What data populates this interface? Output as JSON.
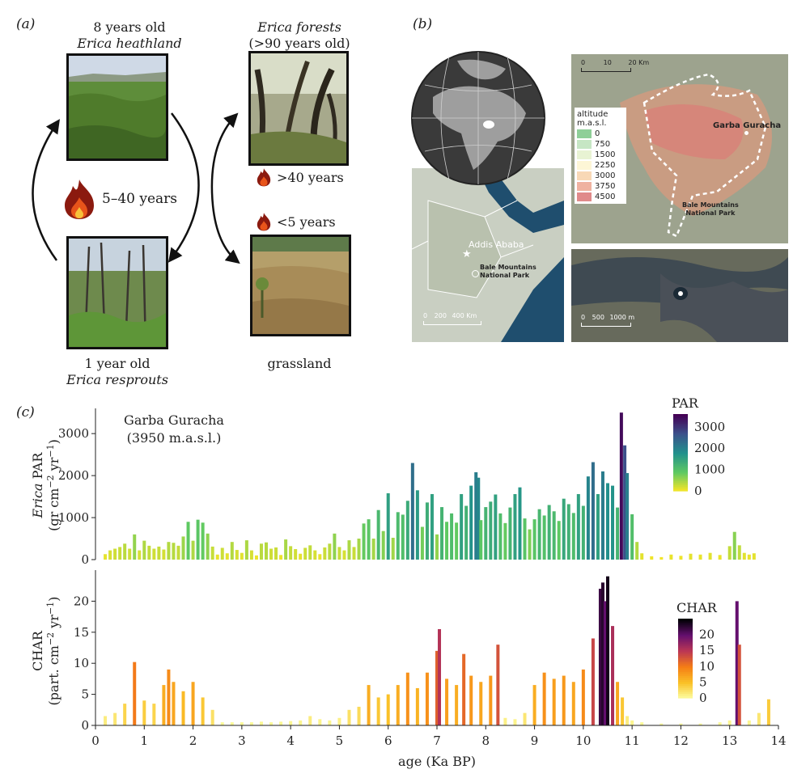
{
  "panel_a": {
    "label": "(a)",
    "top_left_caption": [
      "8 years old",
      "Erica heathland"
    ],
    "top_right_caption": [
      "Erica forests",
      "(>90 years old)"
    ],
    "bottom_left_caption": [
      "1 year old",
      "Erica resprouts"
    ],
    "bottom_right_caption": "grassland",
    "fire_center_label": "5–40 years",
    "fire_upper_label": ">40 years",
    "fire_lower_label": "<5 years"
  },
  "panel_b": {
    "label": "(b)",
    "legend_title": "altitude",
    "legend_unit": "m.a.s.l.",
    "legend_entries": [
      {
        "label": "0",
        "color": "#8fcf98"
      },
      {
        "label": "750",
        "color": "#c6e6c4"
      },
      {
        "label": "1500",
        "color": "#e8f3d3"
      },
      {
        "label": "2250",
        "color": "#fdf6d6"
      },
      {
        "label": "3000",
        "color": "#f8d8b6"
      },
      {
        "label": "3750",
        "color": "#efb2a0"
      },
      {
        "label": "4500",
        "color": "#e08a8a"
      }
    ],
    "scale_region": [
      "0",
      "200",
      "400 Km"
    ],
    "scale_park": [
      "0",
      "10",
      "20 Km"
    ],
    "scale_lake": [
      "0",
      "500",
      "1000 m"
    ],
    "city_label": "Addis Ababa",
    "park_label_small": [
      "Bale Mountains",
      "National Park"
    ],
    "park_label_large": [
      "Bale Mountains",
      "National Park"
    ],
    "site_label": "Garba Guracha"
  },
  "panel_c": {
    "label": "(c)",
    "site_title": [
      "Garba Guracha",
      "(3950 m.a.s.l.)"
    ],
    "xlabel": "age (Ka BP)"
  },
  "chart_data": [
    {
      "type": "bar",
      "title": "Garba Guracha (3950 m.a.s.l.)",
      "ylabel": "Erica PAR (gr cm^-2 yr^-1)",
      "xlabel": "age (Ka BP)",
      "xlim": [
        0,
        14
      ],
      "ylim": [
        0,
        3600
      ],
      "yticks": [
        0,
        1000,
        2000,
        3000
      ],
      "colorbar": {
        "title": "PAR",
        "ticks": [
          0,
          1000,
          2000,
          3000
        ],
        "colormap": "viridis"
      },
      "x": [
        0.2,
        0.3,
        0.4,
        0.5,
        0.6,
        0.7,
        0.8,
        0.9,
        1.0,
        1.1,
        1.2,
        1.3,
        1.4,
        1.5,
        1.6,
        1.7,
        1.8,
        1.9,
        2.0,
        2.1,
        2.2,
        2.3,
        2.4,
        2.5,
        2.6,
        2.7,
        2.8,
        2.9,
        3.0,
        3.1,
        3.2,
        3.3,
        3.4,
        3.5,
        3.6,
        3.7,
        3.8,
        3.9,
        4.0,
        4.1,
        4.2,
        4.3,
        4.4,
        4.5,
        4.6,
        4.7,
        4.8,
        4.9,
        5.0,
        5.1,
        5.2,
        5.3,
        5.4,
        5.5,
        5.6,
        5.7,
        5.8,
        5.9,
        6.0,
        6.1,
        6.2,
        6.3,
        6.4,
        6.5,
        6.6,
        6.7,
        6.8,
        6.9,
        7.0,
        7.1,
        7.2,
        7.3,
        7.4,
        7.5,
        7.6,
        7.7,
        7.8,
        7.85,
        7.9,
        8.0,
        8.1,
        8.2,
        8.3,
        8.4,
        8.5,
        8.6,
        8.7,
        8.8,
        8.9,
        9.0,
        9.1,
        9.2,
        9.3,
        9.4,
        9.5,
        9.6,
        9.7,
        9.8,
        9.9,
        10.0,
        10.1,
        10.2,
        10.3,
        10.4,
        10.5,
        10.6,
        10.7,
        10.78,
        10.85,
        10.9,
        11.0,
        11.1,
        11.2,
        11.4,
        11.6,
        11.8,
        12.0,
        12.2,
        12.4,
        12.6,
        12.8,
        13.0,
        13.1,
        13.2,
        13.3,
        13.4,
        13.5
      ],
      "values": [
        130,
        220,
        260,
        300,
        380,
        260,
        600,
        220,
        450,
        330,
        260,
        310,
        240,
        420,
        400,
        330,
        550,
        900,
        450,
        950,
        880,
        620,
        310,
        120,
        280,
        150,
        420,
        230,
        160,
        460,
        220,
        100,
        380,
        410,
        260,
        290,
        110,
        480,
        320,
        250,
        140,
        280,
        340,
        220,
        130,
        290,
        380,
        620,
        300,
        220,
        460,
        300,
        500,
        860,
        960,
        500,
        1180,
        680,
        1580,
        520,
        1130,
        1070,
        1400,
        2300,
        1650,
        780,
        1360,
        1560,
        600,
        1250,
        900,
        1100,
        880,
        1560,
        1280,
        1760,
        2080,
        1950,
        940,
        1250,
        1380,
        1550,
        1100,
        870,
        1240,
        1560,
        1720,
        980,
        720,
        960,
        1200,
        1050,
        1300,
        1150,
        920,
        1450,
        1320,
        1110,
        1560,
        1280,
        1980,
        2320,
        1560,
        2100,
        1820,
        1760,
        1240,
        3500,
        2720,
        2060,
        1080,
        420,
        150,
        80,
        60,
        120,
        90,
        140,
        120,
        160,
        110,
        320,
        660,
        340,
        160,
        120,
        150
      ]
    },
    {
      "type": "bar",
      "ylabel": "CHAR (part. cm^-2 yr^-1)",
      "xlabel": "age (Ka BP)",
      "xlim": [
        0,
        14
      ],
      "ylim": [
        0,
        25
      ],
      "yticks": [
        0,
        5,
        10,
        15,
        20
      ],
      "xticks": [
        0,
        1,
        2,
        3,
        4,
        5,
        6,
        7,
        8,
        9,
        10,
        11,
        12,
        13,
        14
      ],
      "colorbar": {
        "title": "CHAR",
        "ticks": [
          0,
          5,
          10,
          15,
          20
        ],
        "colormap": "inferno"
      },
      "x": [
        0.2,
        0.4,
        0.6,
        0.8,
        1.0,
        1.2,
        1.4,
        1.5,
        1.6,
        1.8,
        2.0,
        2.2,
        2.4,
        2.6,
        2.8,
        3.0,
        3.2,
        3.4,
        3.6,
        3.8,
        4.0,
        4.2,
        4.4,
        4.6,
        4.8,
        5.0,
        5.2,
        5.4,
        5.6,
        5.8,
        6.0,
        6.2,
        6.4,
        6.6,
        6.8,
        7.0,
        7.05,
        7.2,
        7.4,
        7.55,
        7.7,
        7.9,
        8.1,
        8.25,
        8.4,
        8.6,
        8.8,
        9.0,
        9.2,
        9.4,
        9.6,
        9.8,
        10.0,
        10.2,
        10.35,
        10.4,
        10.45,
        10.5,
        10.6,
        10.7,
        10.8,
        10.9,
        11.0,
        11.2,
        11.6,
        12.0,
        12.4,
        12.8,
        13.0,
        13.15,
        13.2,
        13.4,
        13.6,
        13.8
      ],
      "values": [
        1.5,
        2.0,
        3.5,
        10.2,
        4.0,
        3.5,
        6.5,
        9.0,
        7.0,
        5.5,
        7.0,
        4.5,
        2.5,
        0.5,
        0.5,
        0.5,
        0.5,
        0.6,
        0.5,
        0.6,
        0.7,
        0.8,
        1.5,
        1.0,
        0.8,
        1.2,
        2.5,
        3.0,
        6.5,
        4.5,
        5.0,
        6.5,
        8.5,
        6.0,
        8.5,
        12.0,
        15.5,
        7.5,
        6.5,
        11.5,
        8.0,
        7.0,
        8.0,
        13.0,
        1.2,
        1.0,
        2.0,
        6.5,
        8.5,
        7.5,
        8.0,
        7.0,
        9.0,
        14.0,
        22.0,
        23.0,
        20.0,
        24.0,
        16.0,
        7.0,
        4.5,
        1.5,
        0.8,
        0.5,
        0.3,
        0.3,
        0.3,
        0.5,
        0.8,
        20.0,
        13.0,
        0.8,
        2.0,
        4.2
      ]
    }
  ]
}
